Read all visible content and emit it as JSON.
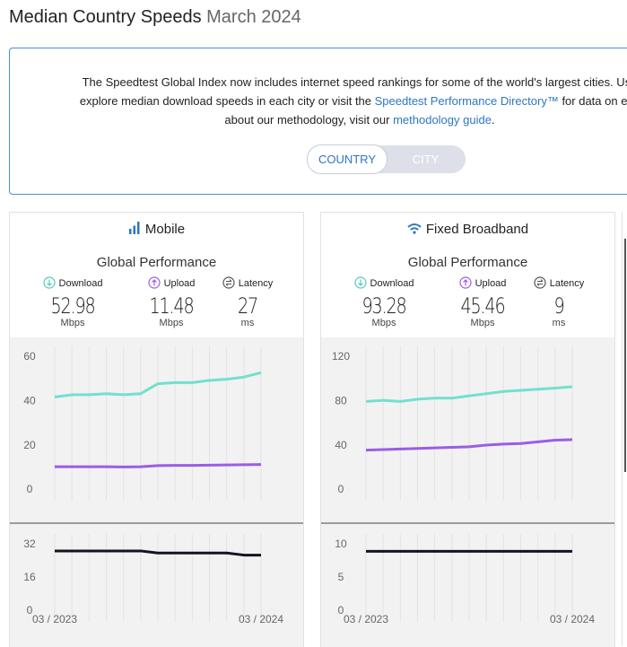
{
  "header": {
    "title": "Median Country Speeds",
    "subtitle": "March 2024"
  },
  "intro": {
    "line1": "The Speedtest Global Index now includes internet speed rankings for some of the world's largest cities. Use",
    "line2_before": "explore median download speeds in each city or visit the ",
    "line2_link": "Speedtest Performance Directory™",
    "line2_after": " for data on eve",
    "line3_before": "about our methodology, visit our ",
    "line3_link": "methodology guide",
    "line3_after": "."
  },
  "toggle": {
    "options": [
      "COUNTRY",
      "CITY"
    ],
    "active": 0
  },
  "panels": [
    {
      "title": "Mobile",
      "subtitle": "Global Performance",
      "metrics": [
        {
          "label": "Download",
          "value": 52.98,
          "unit": "Mbps"
        },
        {
          "label": "Upload",
          "value": 11.48,
          "unit": "Mbps"
        },
        {
          "label": "Latency",
          "value": 27,
          "unit": "ms"
        }
      ]
    },
    {
      "title": "Fixed Broadband",
      "subtitle": "Global Performance",
      "metrics": [
        {
          "label": "Download",
          "value": 93.28,
          "unit": "Mbps"
        },
        {
          "label": "Upload",
          "value": 45.46,
          "unit": "Mbps"
        },
        {
          "label": "Latency",
          "value": 9,
          "unit": "ms"
        }
      ]
    }
  ],
  "chart_data": [
    {
      "type": "line",
      "ylim": [
        0,
        60
      ],
      "yticks": [
        0,
        20,
        40,
        60
      ],
      "series": [
        {
          "color": "#72e0cf",
          "values": [
            42,
            43,
            43,
            43.5,
            43,
            43.5,
            48,
            48.5,
            48.5,
            49.5,
            50,
            51,
            52.98
          ]
        },
        {
          "color": "#9b5de5",
          "values": [
            10.5,
            10.5,
            10.5,
            10.5,
            10.4,
            10.5,
            11,
            11.1,
            11.1,
            11.2,
            11.3,
            11.4,
            11.48
          ]
        }
      ]
    },
    {
      "type": "line",
      "ylim": [
        0,
        32
      ],
      "yticks": [
        0,
        16,
        32
      ],
      "categories": [
        "03 / 2023",
        null,
        null,
        null,
        null,
        null,
        null,
        null,
        null,
        null,
        null,
        null,
        "03 / 2024"
      ],
      "series": [
        {
          "color": "#14141f",
          "values": [
            29,
            29,
            29,
            29,
            29,
            29,
            28,
            28,
            28,
            28,
            28,
            27,
            27
          ]
        }
      ]
    },
    {
      "type": "line",
      "ylim": [
        0,
        120
      ],
      "yticks": [
        0,
        40,
        80,
        120
      ],
      "series": [
        {
          "color": "#72e0cf",
          "values": [
            80,
            81,
            80,
            82,
            83,
            83,
            85,
            87,
            89,
            90,
            91,
            92,
            93.28
          ]
        },
        {
          "color": "#9b5de5",
          "values": [
            36,
            36.5,
            37,
            37.5,
            38,
            38.5,
            39,
            40.5,
            41.5,
            42,
            43.5,
            45,
            45.46
          ]
        }
      ]
    },
    {
      "type": "line",
      "ylim": [
        0,
        10
      ],
      "yticks": [
        0,
        5,
        10
      ],
      "categories": [
        "03 / 2023",
        null,
        null,
        null,
        null,
        null,
        null,
        null,
        null,
        null,
        null,
        null,
        "03 / 2024"
      ],
      "series": [
        {
          "color": "#14141f",
          "values": [
            9,
            9,
            9,
            9,
            9,
            9,
            9,
            9,
            9,
            9,
            9,
            9,
            9
          ]
        }
      ]
    }
  ]
}
